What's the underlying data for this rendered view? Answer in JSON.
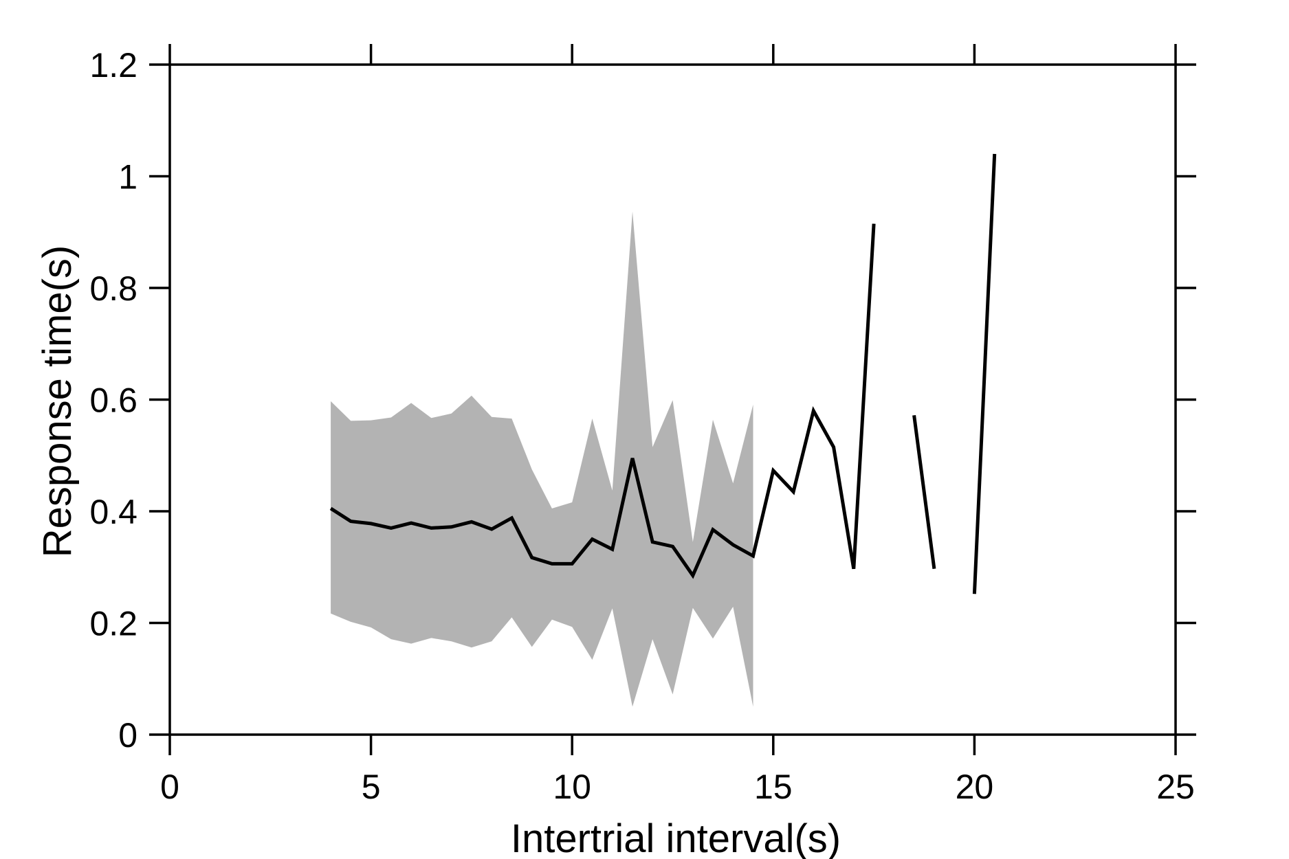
{
  "chart_data": {
    "type": "line",
    "xlabel": "Intertrial interval(s)",
    "ylabel": "Response time(s)",
    "xlim": [
      0,
      25
    ],
    "ylim": [
      0,
      1.2
    ],
    "xticks": [
      0,
      5,
      10,
      15,
      20,
      25
    ],
    "xtick_labels": [
      "0",
      "5",
      "10",
      "15",
      "20",
      "25"
    ],
    "yticks": [
      0,
      0.2,
      0.4,
      0.6,
      0.8,
      1.0,
      1.2
    ],
    "ytick_labels": [
      "0",
      "0.2",
      "0.4",
      "0.6",
      "0.8",
      "1",
      "1.2"
    ],
    "grid": false,
    "box": true,
    "colors": {
      "line": "#000000",
      "band": "#b3b3b3",
      "axes": "#000000"
    },
    "series": [
      {
        "x": [
          4,
          4.5,
          5,
          5.5,
          6,
          6.5,
          7,
          7.5,
          8,
          8.5,
          9,
          9.5,
          10,
          10.5,
          11,
          11.5,
          12,
          12.5,
          13,
          13.5,
          14,
          14.5,
          15,
          15.5,
          16,
          16.5,
          17,
          17.5,
          18,
          18.5,
          19,
          19.5,
          20,
          20.5
        ],
        "y": [
          0.405,
          0.382,
          0.378,
          0.37,
          0.379,
          0.37,
          0.372,
          0.381,
          0.368,
          0.388,
          0.317,
          0.306,
          0.306,
          0.35,
          0.332,
          0.495,
          0.345,
          0.337,
          0.285,
          0.367,
          0.34,
          0.32,
          0.473,
          0.435,
          0.58,
          0.515,
          0.297,
          0.915,
          null,
          0.572,
          0.297,
          null,
          0.252,
          1.04
        ]
      }
    ],
    "band": {
      "x": [
        4,
        4.5,
        5,
        5.5,
        6,
        6.5,
        7,
        7.5,
        8,
        8.5,
        9,
        9.5,
        10,
        10.5,
        11,
        11.5,
        12,
        12.5,
        13,
        13.5,
        14,
        14.5
      ],
      "upper": [
        0.597,
        0.562,
        0.563,
        0.568,
        0.594,
        0.567,
        0.575,
        0.607,
        0.569,
        0.566,
        0.475,
        0.405,
        0.416,
        0.566,
        0.437,
        0.937,
        0.515,
        0.599,
        0.345,
        0.564,
        0.45,
        0.591
      ],
      "lower": [
        0.217,
        0.202,
        0.192,
        0.171,
        0.163,
        0.173,
        0.167,
        0.156,
        0.167,
        0.21,
        0.157,
        0.206,
        0.193,
        0.134,
        0.226,
        0.05,
        0.171,
        0.072,
        0.227,
        0.172,
        0.229,
        0.05
      ]
    }
  }
}
